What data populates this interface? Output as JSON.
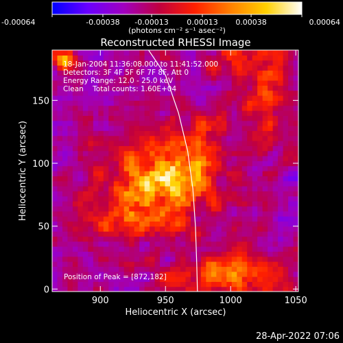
{
  "chart_data": {
    "type": "heatmap",
    "title": "Reconstructed RHESSI Image",
    "xlabel": "Heliocentric X (arcsec)",
    "ylabel": "Heliocentric Y (arcsec)",
    "xlim": [
      863,
      1052
    ],
    "ylim": [
      -2,
      190
    ],
    "x_ticks": [
      900,
      950,
      1000,
      1050
    ],
    "y_ticks": [
      0,
      50,
      100,
      150
    ],
    "colorbar": {
      "ticks": [
        "-0.00064",
        "-0.00038",
        "-0.00013",
        "0.00013",
        "0.00038",
        "0.00064"
      ],
      "tick_values": [
        -0.00064,
        -0.00038,
        -0.00013,
        0.00013,
        0.00038,
        0.00064
      ],
      "unit": "(photons cm⁻² s⁻¹ asec⁻²)",
      "range": [
        -0.00064,
        0.00064
      ],
      "colors": [
        "#0000ff",
        "#6a00ff",
        "#a000c0",
        "#c00040",
        "#ff2000",
        "#ff8000",
        "#ffd000",
        "#ffffff"
      ]
    },
    "info_lines": [
      "18-Jan-2004 11:36:08.000 to 11:41:52.000",
      "Detectors: 3F 4F 5F 6F 7F 8F, Att 0",
      "Energy Range: 12.0 - 25.0 keV",
      "Clean    Total counts: 1.60E+04"
    ],
    "peak_label": "Position of Peak = [872,182]",
    "peak": [
      872,
      182
    ],
    "limb_curve": [
      [
        937,
        190
      ],
      [
        950,
        170
      ],
      [
        960,
        140
      ],
      [
        967,
        110
      ],
      [
        971,
        80
      ],
      [
        973,
        50
      ],
      [
        974,
        20
      ],
      [
        974.5,
        -2
      ]
    ],
    "sources": [
      {
        "x": 955,
        "y": 90,
        "sx": 30,
        "sy": 25,
        "amp": 0.00045
      },
      {
        "x": 972,
        "y": 100,
        "sx": 12,
        "sy": 12,
        "amp": 0.00025
      },
      {
        "x": 930,
        "y": 70,
        "sx": 22,
        "sy": 18,
        "amp": 0.00028
      },
      {
        "x": 905,
        "y": 55,
        "sx": 14,
        "sy": 10,
        "amp": 0.0002
      },
      {
        "x": 1000,
        "y": 12,
        "sx": 35,
        "sy": 12,
        "amp": 0.0004
      },
      {
        "x": 1030,
        "y": 150,
        "sx": 12,
        "sy": 25,
        "amp": 0.0003
      },
      {
        "x": 1005,
        "y": 185,
        "sx": 18,
        "sy": 10,
        "amp": 0.00025
      },
      {
        "x": 985,
        "y": 130,
        "sx": 14,
        "sy": 10,
        "amp": 0.00018
      },
      {
        "x": 872,
        "y": 182,
        "sx": 6,
        "sy": 6,
        "amp": 0.0006
      }
    ],
    "grid": false
  },
  "footer_timestamp": "28-Apr-2022 07:06"
}
